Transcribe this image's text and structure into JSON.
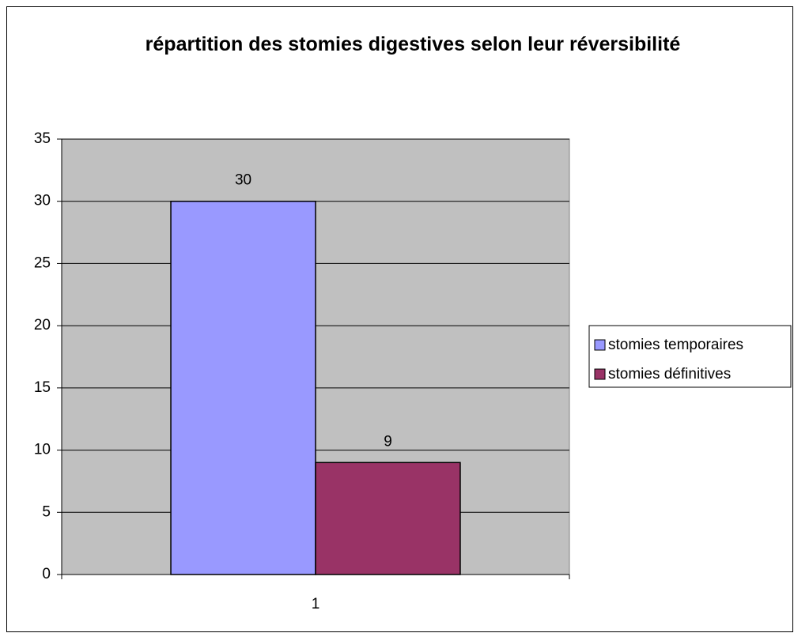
{
  "chart_data": {
    "type": "bar",
    "title": "répartition des stomies digestives selon leur réversibilité",
    "categories": [
      "1"
    ],
    "series": [
      {
        "name": "stomies temporaires",
        "color": "#9999ff",
        "values": [
          30
        ]
      },
      {
        "name": "stomies définitives",
        "color": "#993366",
        "values": [
          9
        ]
      }
    ],
    "ylim": [
      0,
      35
    ],
    "yticks": [
      0,
      5,
      10,
      15,
      20,
      25,
      30,
      35
    ],
    "grid": true,
    "plot_background": "#c0c0c0",
    "legend": "right"
  }
}
